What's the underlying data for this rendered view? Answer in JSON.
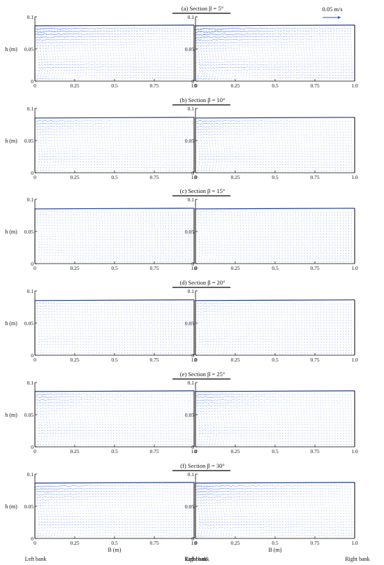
{
  "figure": {
    "scale_label": "0.05 m/s",
    "ylabel": "h (m)",
    "xlabel": "B (m)",
    "left_bank_label": "Left bank",
    "right_bank_label": "Right bank",
    "vector_color": "#1f4fd8",
    "frame_color": "#000000"
  },
  "chart_data": [
    {
      "type": "vector-field",
      "section": "(a)",
      "title": "Section β = 5°",
      "xlim": [
        0,
        1.0
      ],
      "ylim": [
        0,
        0.1
      ],
      "xticks": [
        "0",
        "0.25",
        "0.5",
        "0.75",
        "1.0"
      ],
      "yticks": [
        "0",
        "0.05",
        "0.1"
      ],
      "water_depth": 0.086,
      "intensity": 1.0
    },
    {
      "type": "vector-field",
      "section": "(b)",
      "title": "Section β = 10°",
      "xlim": [
        0,
        1.0
      ],
      "ylim": [
        0,
        0.1
      ],
      "xticks": [
        "0",
        "0.25",
        "0.5",
        "0.75",
        "1.0"
      ],
      "yticks": [
        "0",
        "0.05",
        "0.1"
      ],
      "water_depth": 0.085,
      "intensity": 0.6
    },
    {
      "type": "vector-field",
      "section": "(c)",
      "title": "Section β = 15°",
      "xlim": [
        0,
        1.0
      ],
      "ylim": [
        0,
        0.1
      ],
      "xticks": [
        "0",
        "0.25",
        "0.5",
        "0.75",
        "1.0"
      ],
      "yticks": [
        "0",
        "0.05",
        "0.1"
      ],
      "water_depth": 0.085,
      "intensity": 0.25
    },
    {
      "type": "vector-field",
      "section": "(d)",
      "title": "Section β = 20°",
      "xlim": [
        0,
        1.0
      ],
      "ylim": [
        0,
        0.1
      ],
      "xticks": [
        "0",
        "0.25",
        "0.5",
        "0.75",
        "1.0"
      ],
      "yticks": [
        "0",
        "0.05",
        "0.1"
      ],
      "water_depth": 0.085,
      "intensity": 0.35
    },
    {
      "type": "vector-field",
      "section": "(e)",
      "title": "Section β = 25°",
      "xlim": [
        0,
        1.0
      ],
      "ylim": [
        0,
        0.1
      ],
      "xticks": [
        "0",
        "0.25",
        "0.5",
        "0.75",
        "1.0"
      ],
      "yticks": [
        "0",
        "0.05",
        "0.1"
      ],
      "water_depth": 0.086,
      "intensity": 0.65
    },
    {
      "type": "vector-field",
      "section": "(f)",
      "title": "Section β = 30°",
      "xlim": [
        0,
        1.0
      ],
      "ylim": [
        0,
        0.1
      ],
      "xticks": [
        "0",
        "0.25",
        "0.5",
        "0.75",
        "1.0"
      ],
      "yticks": [
        "0",
        "0.05",
        "0.1"
      ],
      "water_depth": 0.086,
      "intensity": 0.8
    }
  ]
}
